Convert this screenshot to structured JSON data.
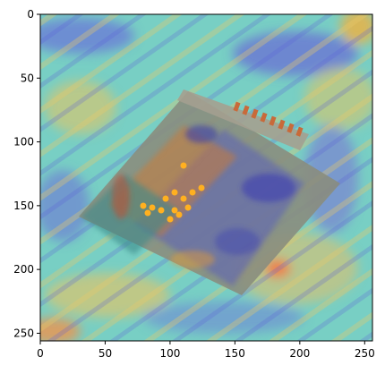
{
  "chart_data": {
    "type": "heatmap",
    "title": "",
    "xlabel": "",
    "ylabel": "",
    "xlim": [
      0,
      256
    ],
    "ylim": [
      256,
      0
    ],
    "x_ticks": [
      0,
      50,
      100,
      150,
      200,
      250
    ],
    "y_ticks": [
      0,
      50,
      100,
      150,
      200,
      250
    ],
    "x_tick_labels": [
      "0",
      "50",
      "100",
      "150",
      "200",
      "250"
    ],
    "y_tick_labels": [
      "0",
      "50",
      "100",
      "150",
      "200",
      "250"
    ],
    "grid": false,
    "legend": "none",
    "image_content": "electronic-module-photo-with-attention-heatmap-overlay",
    "colormap": "jet",
    "colors": {
      "background_cool": "#6fd0c8",
      "cool": "#5b5bd6",
      "warm": "#e8c25a",
      "hot": "#ff7a2a",
      "device_body": "#8a8f86",
      "frame": "#000000"
    }
  }
}
